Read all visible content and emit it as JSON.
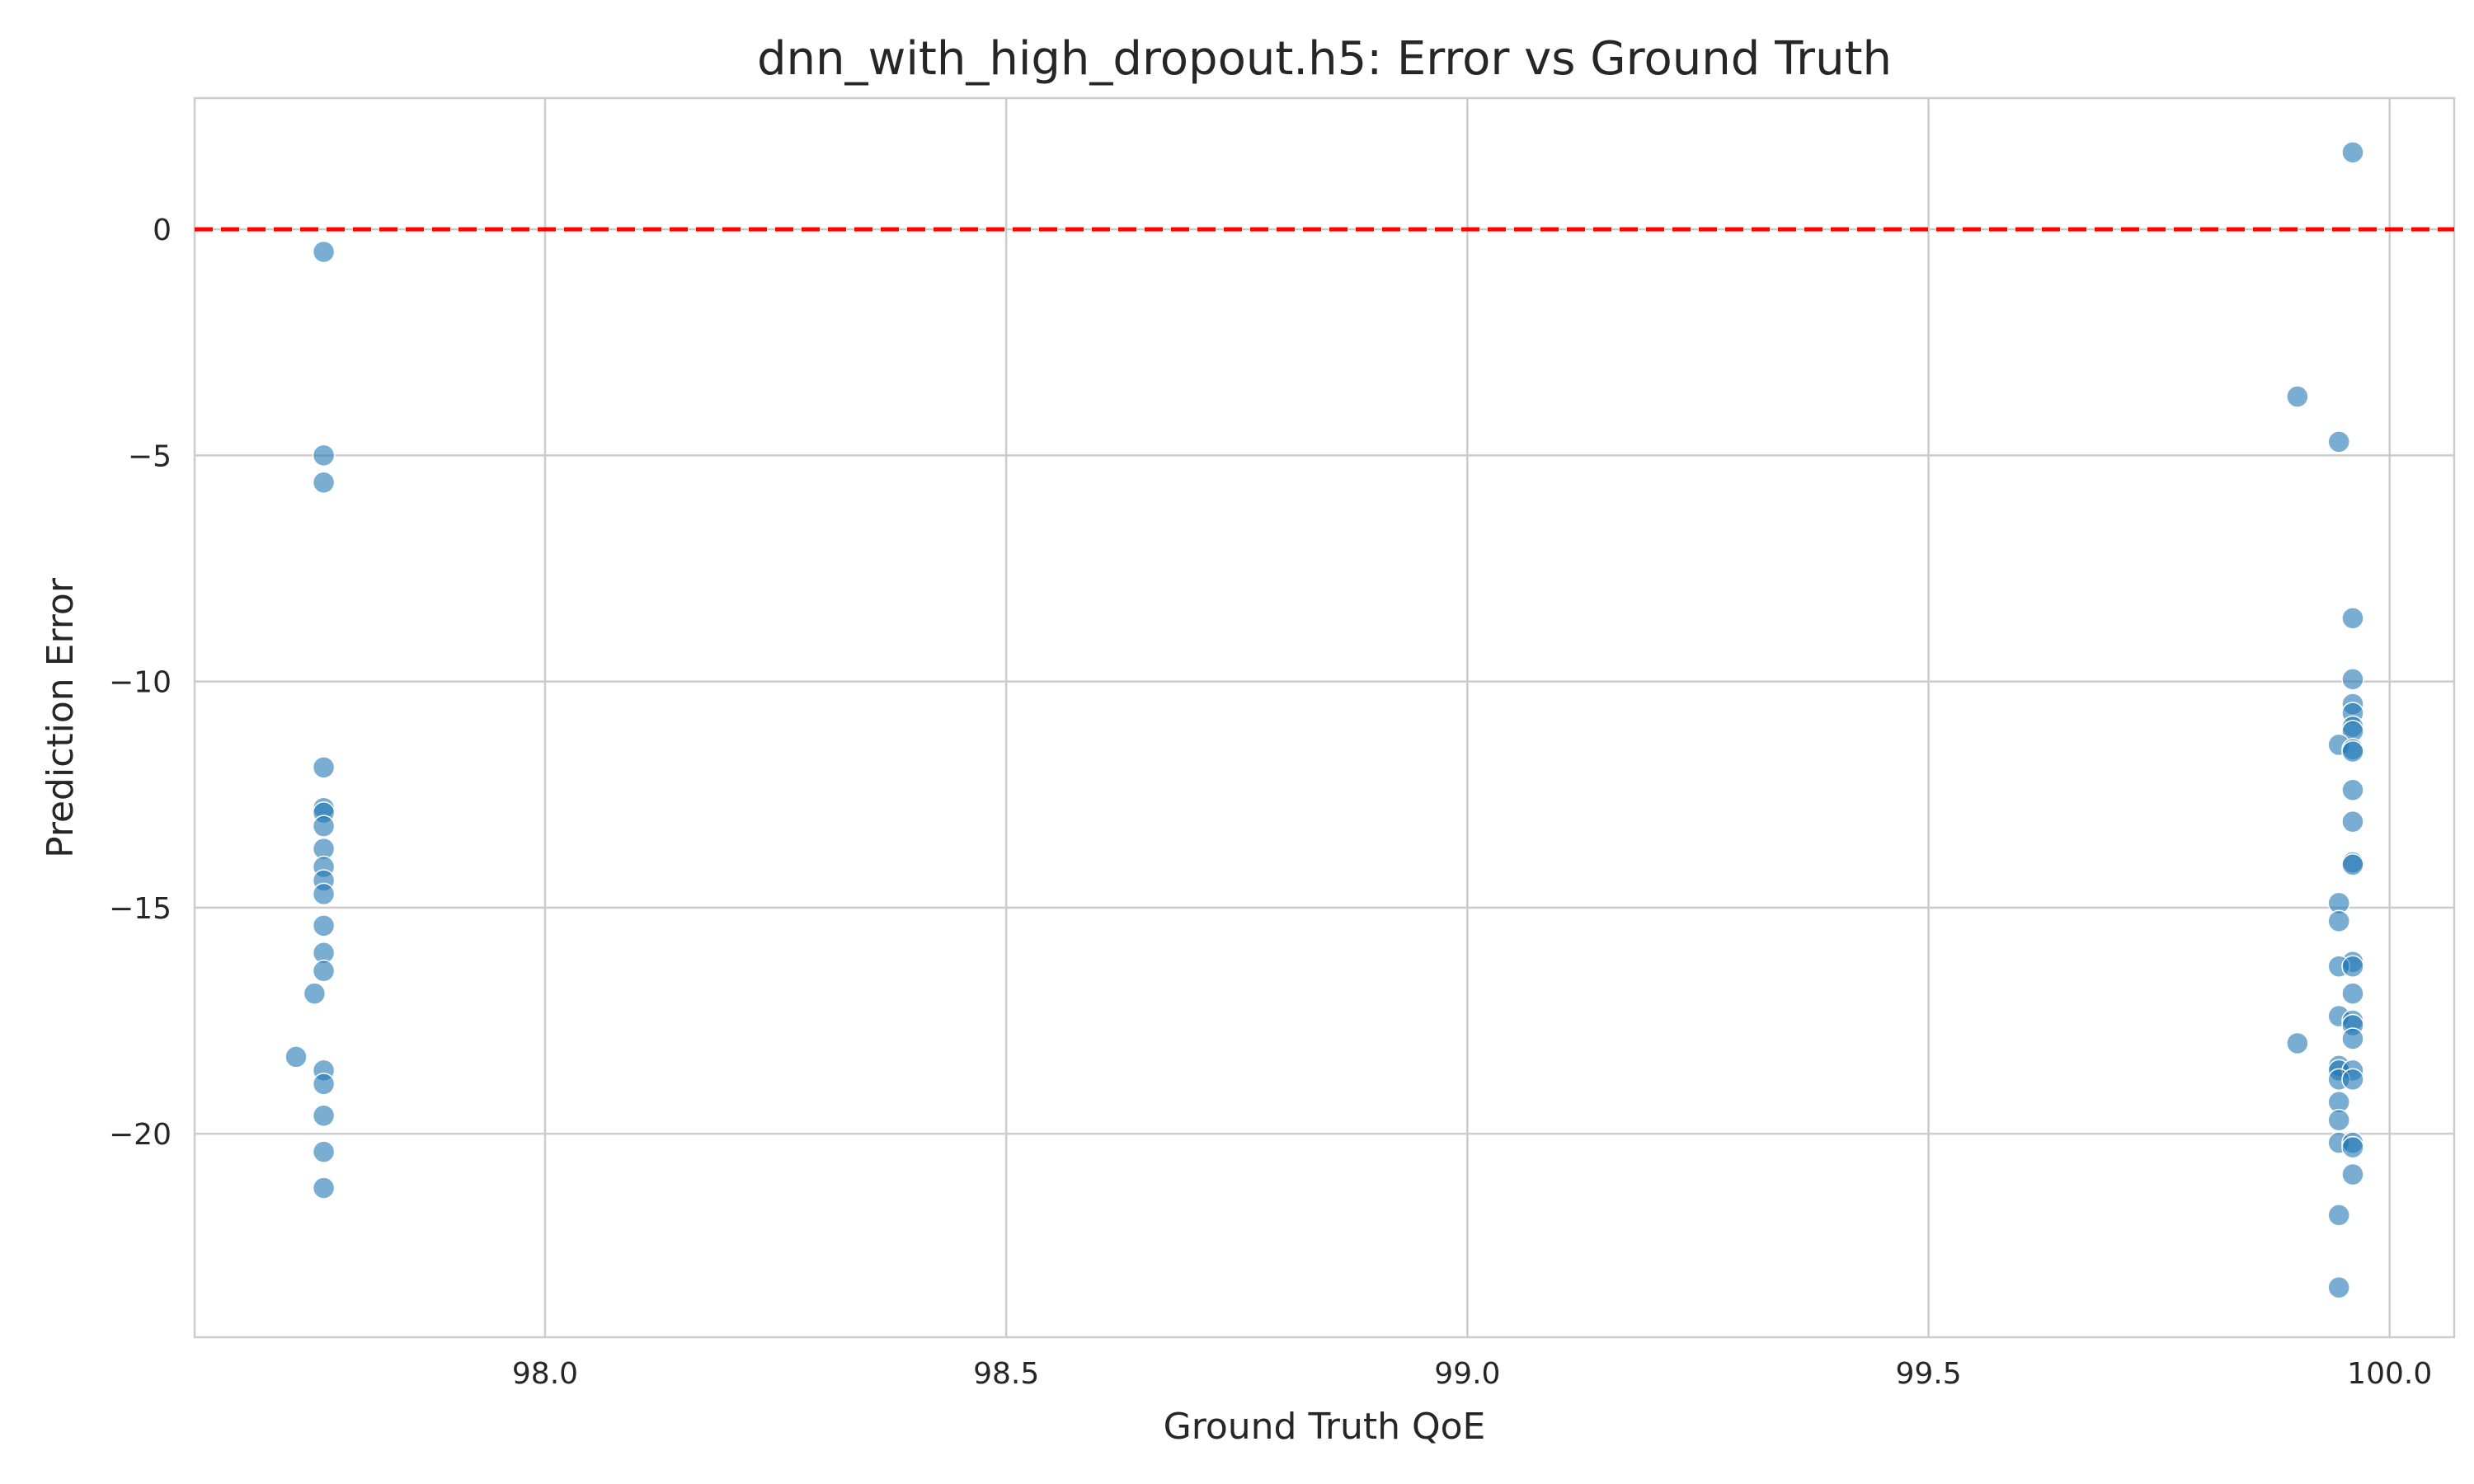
{
  "chart_data": {
    "type": "scatter",
    "title": "dnn_with_high_dropout.h5: Error vs Ground Truth",
    "xlabel": "Ground Truth QoE",
    "ylabel": "Prediction Error",
    "xlim": [
      97.62,
      100.07
    ],
    "ylim": [
      -24.5,
      2.9
    ],
    "xticks": [
      98.0,
      98.5,
      99.0,
      99.5,
      100.0
    ],
    "xtick_labels": [
      "98.0",
      "98.5",
      "99.0",
      "99.5",
      "100.0"
    ],
    "yticks": [
      0,
      -5,
      -10,
      -15,
      -20
    ],
    "ytick_labels": [
      "0",
      "−5",
      "−10",
      "−15",
      "−20"
    ],
    "grid": true,
    "reference_line": {
      "y": 0,
      "color": "#ff0000",
      "style": "dashed"
    },
    "point_color": "#1f77b4",
    "series": [
      {
        "points": [
          {
            "x": 97.76,
            "y": -0.5
          },
          {
            "x": 97.76,
            "y": -5.0
          },
          {
            "x": 97.76,
            "y": -5.6
          },
          {
            "x": 97.76,
            "y": -11.9
          },
          {
            "x": 97.76,
            "y": -12.8
          },
          {
            "x": 97.76,
            "y": -12.9
          },
          {
            "x": 97.76,
            "y": -13.2
          },
          {
            "x": 97.76,
            "y": -13.7
          },
          {
            "x": 97.76,
            "y": -14.1
          },
          {
            "x": 97.76,
            "y": -14.4
          },
          {
            "x": 97.76,
            "y": -14.7
          },
          {
            "x": 97.76,
            "y": -15.4
          },
          {
            "x": 97.76,
            "y": -16.0
          },
          {
            "x": 97.76,
            "y": -16.4
          },
          {
            "x": 97.75,
            "y": -16.9
          },
          {
            "x": 97.73,
            "y": -18.3
          },
          {
            "x": 97.76,
            "y": -18.6
          },
          {
            "x": 97.76,
            "y": -18.9
          },
          {
            "x": 97.76,
            "y": -19.6
          },
          {
            "x": 97.76,
            "y": -20.4
          },
          {
            "x": 97.76,
            "y": -21.2
          },
          {
            "x": 99.96,
            "y": 1.7
          },
          {
            "x": 99.9,
            "y": -3.7
          },
          {
            "x": 99.945,
            "y": -4.7
          },
          {
            "x": 99.96,
            "y": -8.6
          },
          {
            "x": 99.96,
            "y": -9.95
          },
          {
            "x": 99.96,
            "y": -10.5
          },
          {
            "x": 99.96,
            "y": -10.7
          },
          {
            "x": 99.96,
            "y": -11.0
          },
          {
            "x": 99.96,
            "y": -11.1
          },
          {
            "x": 99.945,
            "y": -11.4
          },
          {
            "x": 99.96,
            "y": -11.5
          },
          {
            "x": 99.96,
            "y": -11.55
          },
          {
            "x": 99.96,
            "y": -12.4
          },
          {
            "x": 99.96,
            "y": -13.1
          },
          {
            "x": 99.96,
            "y": -14.0
          },
          {
            "x": 99.96,
            "y": -14.05
          },
          {
            "x": 99.945,
            "y": -14.9
          },
          {
            "x": 99.945,
            "y": -15.3
          },
          {
            "x": 99.96,
            "y": -16.2
          },
          {
            "x": 99.945,
            "y": -16.3
          },
          {
            "x": 99.96,
            "y": -16.3
          },
          {
            "x": 99.96,
            "y": -16.9
          },
          {
            "x": 99.945,
            "y": -17.4
          },
          {
            "x": 99.96,
            "y": -17.5
          },
          {
            "x": 99.96,
            "y": -17.6
          },
          {
            "x": 99.9,
            "y": -18.0
          },
          {
            "x": 99.96,
            "y": -17.9
          },
          {
            "x": 99.945,
            "y": -18.5
          },
          {
            "x": 99.945,
            "y": -18.6
          },
          {
            "x": 99.96,
            "y": -18.6
          },
          {
            "x": 99.945,
            "y": -18.8
          },
          {
            "x": 99.96,
            "y": -18.8
          },
          {
            "x": 99.945,
            "y": -19.3
          },
          {
            "x": 99.945,
            "y": -19.7
          },
          {
            "x": 99.945,
            "y": -20.2
          },
          {
            "x": 99.96,
            "y": -20.2
          },
          {
            "x": 99.96,
            "y": -20.3
          },
          {
            "x": 99.96,
            "y": -20.9
          },
          {
            "x": 99.945,
            "y": -21.8
          },
          {
            "x": 99.945,
            "y": -23.4
          }
        ]
      }
    ]
  }
}
